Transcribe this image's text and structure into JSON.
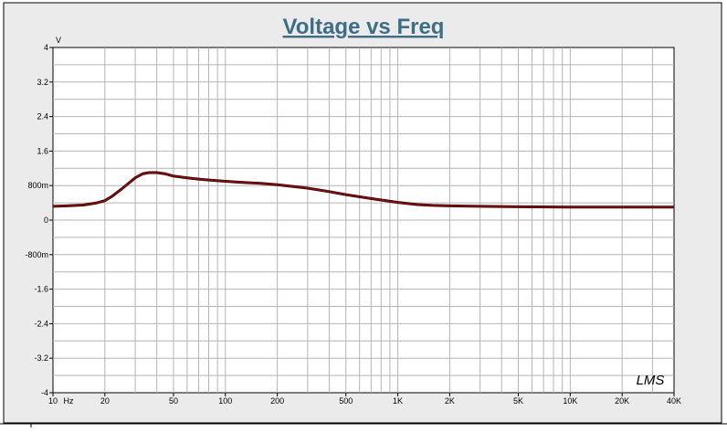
{
  "chart_data": {
    "type": "line",
    "title": "Voltage vs Freq",
    "y_unit": "V",
    "x_unit": "Hz",
    "x_scale": "log",
    "xlim": [
      10,
      40000
    ],
    "ylim": [
      -4,
      4
    ],
    "grid": true,
    "x_tick_labels": [
      {
        "value": 10,
        "label": "10"
      },
      {
        "value": 20,
        "label": "20"
      },
      {
        "value": 50,
        "label": "50"
      },
      {
        "value": 100,
        "label": "100"
      },
      {
        "value": 200,
        "label": "200"
      },
      {
        "value": 500,
        "label": "500"
      },
      {
        "value": 1000,
        "label": "1K"
      },
      {
        "value": 2000,
        "label": "2K"
      },
      {
        "value": 5000,
        "label": "5K"
      },
      {
        "value": 10000,
        "label": "10K"
      },
      {
        "value": 20000,
        "label": "20K"
      },
      {
        "value": 40000,
        "label": "40K"
      }
    ],
    "y_tick_labels": [
      {
        "value": 4,
        "label": "4"
      },
      {
        "value": 3.2,
        "label": "3.2"
      },
      {
        "value": 2.4,
        "label": "2.4"
      },
      {
        "value": 1.6,
        "label": "1.6"
      },
      {
        "value": 0.8,
        "label": "800m"
      },
      {
        "value": 0,
        "label": "0"
      },
      {
        "value": -0.8,
        "label": "-800m"
      },
      {
        "value": -1.6,
        "label": "-1.6"
      },
      {
        "value": -2.4,
        "label": "-2.4"
      },
      {
        "value": -3.2,
        "label": "-3.2"
      },
      {
        "value": -4,
        "label": "-4"
      }
    ],
    "series": [
      {
        "color": "#8b1010",
        "x": [
          10,
          12,
          15,
          18,
          20,
          22,
          25,
          28,
          30,
          33,
          36,
          40,
          45,
          50,
          60,
          70,
          80,
          100,
          130,
          160,
          200,
          300,
          400,
          500,
          700,
          1000,
          1300,
          1600,
          2000,
          3000,
          5000,
          10000,
          20000,
          40000
        ],
        "y": [
          0.32,
          0.33,
          0.35,
          0.4,
          0.45,
          0.55,
          0.72,
          0.88,
          0.98,
          1.07,
          1.1,
          1.1,
          1.07,
          1.02,
          0.98,
          0.95,
          0.93,
          0.9,
          0.87,
          0.85,
          0.82,
          0.74,
          0.66,
          0.59,
          0.5,
          0.41,
          0.36,
          0.34,
          0.33,
          0.32,
          0.31,
          0.3,
          0.3,
          0.3
        ]
      }
    ]
  },
  "watermark": "LMS"
}
